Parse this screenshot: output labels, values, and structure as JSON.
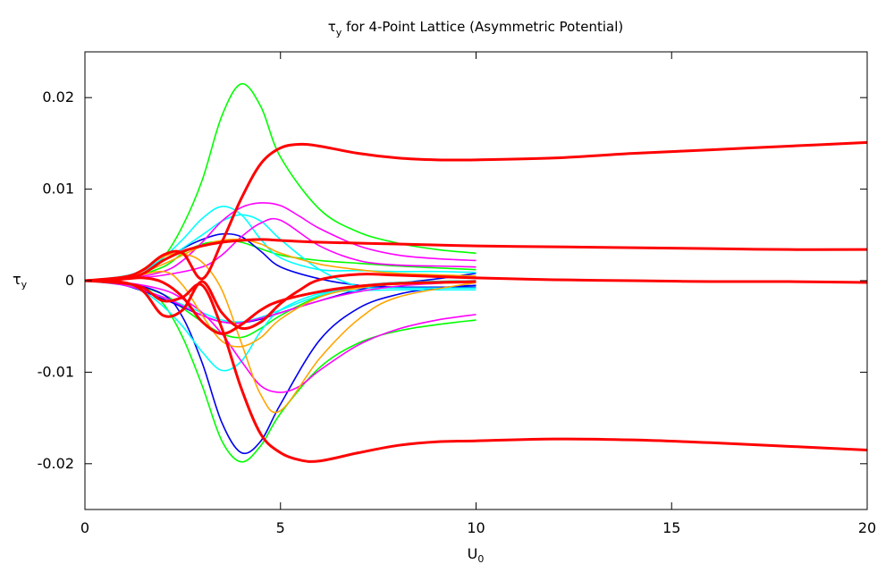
{
  "chart_data": {
    "type": "line",
    "title": {
      "base": "τ",
      "sub": "y",
      "rest": " for 4-Point Lattice (Asymmetric Potential)"
    },
    "xlabel": {
      "base": "U",
      "sub": "0"
    },
    "ylabel": {
      "base": "τ",
      "sub": "y"
    },
    "xlim": [
      0,
      20
    ],
    "ylim": [
      -0.025,
      0.025
    ],
    "xticks": [
      {
        "value": 0,
        "label": "0"
      },
      {
        "value": 5,
        "label": "5"
      },
      {
        "value": 10,
        "label": "10"
      },
      {
        "value": 15,
        "label": "15"
      },
      {
        "value": 20,
        "label": "20"
      }
    ],
    "yticks": [
      {
        "value": -0.02,
        "label": "-0.02"
      },
      {
        "value": -0.01,
        "label": "-0.01"
      },
      {
        "value": 0,
        "label": "0"
      },
      {
        "value": 0.01,
        "label": "0.01"
      },
      {
        "value": 0.02,
        "label": "0.02"
      }
    ],
    "grid": false,
    "legend": "none",
    "colors": {
      "red": "#ff0000",
      "green": "#00ff00",
      "blue": "#0000ee",
      "cyan": "#00ffff",
      "magenta": "#ff00ff",
      "orange": "#ffa500"
    },
    "series": [
      {
        "color": "green",
        "x": [
          0,
          1,
          1.5,
          2,
          2.5,
          3,
          3.5,
          4,
          4.5,
          5,
          6,
          7,
          8,
          9,
          10
        ],
        "y": [
          0,
          0.0003,
          0.0008,
          0.0025,
          0.006,
          0.011,
          0.018,
          0.0215,
          0.019,
          0.0135,
          0.0078,
          0.0053,
          0.0041,
          0.0034,
          0.003
        ]
      },
      {
        "color": "green",
        "x": [
          0,
          1,
          1.5,
          2,
          2.5,
          3,
          3.5,
          4,
          4.5,
          5,
          6,
          7,
          8,
          9,
          10
        ],
        "y": [
          0,
          -0.0003,
          -0.0008,
          -0.0025,
          -0.0062,
          -0.0115,
          -0.0175,
          -0.0198,
          -0.018,
          -0.0145,
          -0.0095,
          -0.0068,
          -0.0055,
          -0.0048,
          -0.0043
        ]
      },
      {
        "color": "green",
        "x": [
          0,
          1,
          2,
          2.5,
          3,
          3.5,
          4,
          5,
          6,
          7,
          8,
          9,
          10
        ],
        "y": [
          0,
          0.0002,
          0.0015,
          0.003,
          0.004,
          0.0043,
          0.0042,
          0.0028,
          0.0022,
          0.0019,
          0.0016,
          0.0014,
          0.0012
        ]
      },
      {
        "color": "green",
        "x": [
          0,
          1,
          2,
          2.5,
          3,
          3.5,
          4,
          4.5,
          5,
          6,
          7,
          8,
          10
        ],
        "y": [
          0,
          -0.0002,
          -0.0015,
          -0.003,
          -0.0045,
          -0.0058,
          -0.0062,
          -0.0052,
          -0.0038,
          -0.0017,
          -0.0007,
          -0.0002,
          0
        ]
      },
      {
        "color": "blue",
        "x": [
          0,
          1,
          2,
          2.5,
          3,
          3.5,
          4,
          4.5,
          5,
          6,
          7,
          8,
          10
        ],
        "y": [
          0,
          0.0003,
          0.0022,
          0.0035,
          0.0045,
          0.0051,
          0.0048,
          0.0032,
          0.0015,
          0.0002,
          -0.0005,
          -0.0007,
          -0.0007
        ]
      },
      {
        "color": "blue",
        "x": [
          0,
          1,
          2,
          2.5,
          3,
          3.5,
          4,
          4.5,
          5,
          6,
          7,
          8,
          9,
          10
        ],
        "y": [
          0,
          -0.0002,
          -0.0015,
          -0.004,
          -0.009,
          -0.0155,
          -0.0188,
          -0.0175,
          -0.0135,
          -0.0065,
          -0.003,
          -0.0015,
          -0.0008,
          -0.0005
        ]
      },
      {
        "color": "blue",
        "x": [
          0,
          1,
          2,
          3,
          3.5,
          4,
          4.5,
          5,
          6,
          7,
          8,
          9,
          10
        ],
        "y": [
          0,
          -0.0005,
          -0.002,
          -0.0038,
          -0.0045,
          -0.0046,
          -0.0042,
          -0.0035,
          -0.0022,
          -0.001,
          -0.0003,
          0.0002,
          0.0008
        ]
      },
      {
        "color": "cyan",
        "x": [
          0,
          1,
          1.5,
          2,
          2.5,
          3,
          3.5,
          4,
          4.5,
          5,
          6,
          7,
          8,
          9,
          10
        ],
        "y": [
          0,
          0.0005,
          0.0012,
          0.0025,
          0.0045,
          0.0068,
          0.0081,
          0.0072,
          0.0045,
          0.0025,
          0.0012,
          0.0011,
          0.001,
          0.001,
          0.0009
        ]
      },
      {
        "color": "cyan",
        "x": [
          0,
          1,
          1.5,
          2,
          2.5,
          3,
          3.5,
          4,
          4.5,
          5,
          6,
          7,
          8,
          9,
          10
        ],
        "y": [
          0,
          -0.0005,
          -0.0012,
          -0.0028,
          -0.005,
          -0.0078,
          -0.0098,
          -0.0088,
          -0.0055,
          -0.0032,
          -0.0014,
          -0.0011,
          -0.001,
          -0.001,
          -0.001
        ]
      },
      {
        "color": "cyan",
        "x": [
          0,
          1,
          2,
          3,
          3.5,
          4,
          4.5,
          5,
          6,
          7,
          8,
          10
        ],
        "y": [
          0,
          0.0003,
          0.0022,
          0.005,
          0.0065,
          0.0072,
          0.0065,
          0.0045,
          0.0012,
          -0.0006,
          -0.0008,
          -0.0008
        ]
      },
      {
        "color": "cyan",
        "x": [
          0,
          1,
          2,
          3,
          3.5,
          4,
          4.5,
          5,
          6,
          7,
          8,
          10
        ],
        "y": [
          0,
          -0.0004,
          -0.0018,
          -0.0035,
          -0.0043,
          -0.0045,
          -0.004,
          -0.0032,
          -0.0016,
          -0.0006,
          -0.0002,
          0
        ]
      },
      {
        "color": "magenta",
        "x": [
          0,
          1,
          2,
          2.5,
          3,
          3.5,
          4,
          4.5,
          5,
          5.5,
          6,
          7,
          8,
          9,
          10
        ],
        "y": [
          0,
          0.0002,
          0.001,
          0.0022,
          0.0042,
          0.0065,
          0.008,
          0.0085,
          0.0082,
          0.007,
          0.0057,
          0.0038,
          0.0028,
          0.0024,
          0.0022
        ]
      },
      {
        "color": "magenta",
        "x": [
          0,
          1,
          2,
          3,
          3.5,
          4,
          4.5,
          5,
          6,
          7,
          8,
          9,
          10
        ],
        "y": [
          0,
          0.0002,
          0.0006,
          0.0015,
          0.0028,
          0.0048,
          0.0063,
          0.0066,
          0.0038,
          0.0022,
          0.0017,
          0.0016,
          0.0015
        ]
      },
      {
        "color": "magenta",
        "x": [
          0,
          1,
          2,
          2.5,
          3,
          3.5,
          4,
          4.5,
          5,
          5.5,
          6,
          7,
          8,
          9,
          10
        ],
        "y": [
          0,
          -0.0002,
          -0.001,
          -0.002,
          -0.0035,
          -0.0058,
          -0.0088,
          -0.0115,
          -0.0122,
          -0.0115,
          -0.0098,
          -0.007,
          -0.0053,
          -0.0043,
          -0.0037
        ]
      },
      {
        "color": "magenta",
        "x": [
          0,
          1,
          2,
          3,
          3.5,
          4,
          5,
          6,
          7,
          8,
          9,
          10
        ],
        "y": [
          0,
          -0.0005,
          -0.0018,
          -0.0038,
          -0.0045,
          -0.0046,
          -0.0035,
          -0.0022,
          -0.0012,
          -0.0006,
          -0.0003,
          -0.0002
        ]
      },
      {
        "color": "orange",
        "x": [
          0,
          1,
          2,
          2.5,
          3,
          3.5,
          4,
          4.5,
          5,
          6,
          7,
          8,
          10
        ],
        "y": [
          0,
          0.0002,
          0.0026,
          0.0029,
          0.002,
          -0.001,
          -0.0068,
          -0.0125,
          -0.0142,
          -0.0085,
          -0.0042,
          -0.0018,
          -0.0002
        ]
      },
      {
        "color": "orange",
        "x": [
          0,
          1,
          2,
          2.5,
          3,
          3.5,
          4,
          4.5,
          5,
          6,
          7,
          8,
          10
        ],
        "y": [
          0,
          0.0002,
          0.001,
          -0.0005,
          -0.0038,
          -0.0066,
          -0.0072,
          -0.0062,
          -0.0042,
          -0.0018,
          -0.0008,
          -0.0004,
          -0.0002
        ]
      },
      {
        "color": "orange",
        "x": [
          0,
          1,
          2,
          3,
          3.5,
          4,
          4.5,
          5,
          6,
          7,
          8,
          10
        ],
        "y": [
          0,
          0.0002,
          0.0018,
          0.0038,
          0.0044,
          0.0045,
          0.004,
          0.003,
          0.0018,
          0.0012,
          0.0008,
          0.0005
        ]
      },
      {
        "color": "red",
        "width": 3,
        "x": [
          0,
          1,
          1.5,
          2,
          2.5,
          3,
          3.5,
          4,
          4.5,
          5,
          5.5,
          6,
          7,
          8,
          9,
          10,
          12,
          14,
          16,
          18,
          20
        ],
        "y": [
          0,
          0.0004,
          0.0012,
          0.0028,
          0.003,
          0.0002,
          0.0042,
          0.009,
          0.0128,
          0.0145,
          0.0149,
          0.0147,
          0.0139,
          0.0134,
          0.0132,
          0.0132,
          0.0134,
          0.0139,
          0.0143,
          0.0147,
          0.0151
        ]
      },
      {
        "color": "red",
        "width": 3,
        "x": [
          0,
          1,
          1.5,
          2,
          2.5,
          3,
          3.5,
          4,
          4.5,
          5,
          5.5,
          6,
          7,
          8,
          9,
          10,
          12,
          14,
          16,
          18,
          20
        ],
        "y": [
          0,
          -0.0003,
          -0.0008,
          -0.0022,
          -0.0018,
          -0.0005,
          -0.0052,
          -0.0118,
          -0.0168,
          -0.0188,
          -0.0196,
          -0.0197,
          -0.0188,
          -0.018,
          -0.0176,
          -0.0175,
          -0.0173,
          -0.0174,
          -0.0177,
          -0.0181,
          -0.0185
        ]
      },
      {
        "color": "red",
        "width": 3,
        "x": [
          0,
          1,
          1.5,
          2,
          2.5,
          3,
          3.5,
          4,
          4.5,
          5,
          6,
          8,
          10,
          12,
          14,
          16,
          18,
          20
        ],
        "y": [
          0,
          0.0002,
          0.0008,
          0.0022,
          0.0032,
          0.0038,
          0.0042,
          0.0044,
          0.0045,
          0.0044,
          0.0042,
          0.004,
          0.0038,
          0.0037,
          0.0036,
          0.0035,
          0.0034,
          0.0034
        ]
      },
      {
        "color": "red",
        "width": 3,
        "x": [
          0,
          1,
          1.5,
          2,
          2.5,
          3,
          3.5,
          4,
          4.5,
          5,
          5.5,
          6,
          7,
          8,
          10,
          12,
          14,
          16,
          18,
          20
        ],
        "y": [
          0,
          -0.0002,
          -0.0012,
          -0.0038,
          -0.0032,
          -0.0001,
          -0.0035,
          -0.0052,
          -0.0045,
          -0.0025,
          -0.001,
          0.0001,
          0.0007,
          0.0006,
          0.0003,
          0.0001,
          0,
          -0.0001,
          -0.0001,
          -0.0002
        ]
      },
      {
        "color": "red",
        "width": 3,
        "x": [
          0,
          1,
          1.5,
          2,
          2.5,
          3,
          3.5,
          4,
          4.5,
          5,
          6,
          7,
          8,
          10
        ],
        "y": [
          0,
          0.0002,
          0.0003,
          -0.0002,
          -0.0018,
          -0.0045,
          -0.0058,
          -0.0048,
          -0.0032,
          -0.0022,
          -0.0012,
          -0.0006,
          -0.0003,
          -0.0001
        ]
      }
    ]
  }
}
